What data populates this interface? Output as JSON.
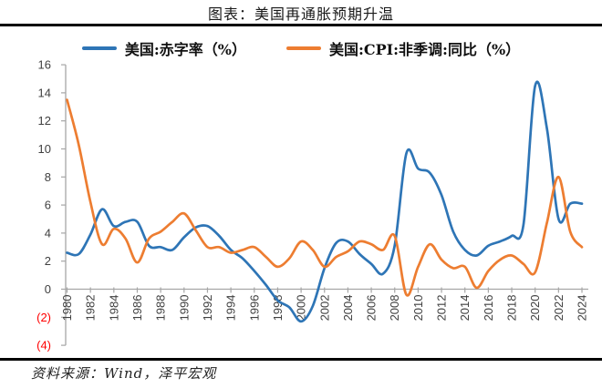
{
  "page": {
    "title": "图表：美国再通胀预期升温",
    "source": "资料来源：Wind，泽平宏观"
  },
  "legend": {
    "items": [
      {
        "label": "美国:赤字率（%）",
        "color": "#2E75B6"
      },
      {
        "label": "美国:CPI:非季调:同比（%）",
        "color": "#ED7D31"
      }
    ]
  },
  "chart_data": {
    "type": "line",
    "title": "图表：美国再通胀预期升温",
    "x": [
      1980,
      1981,
      1982,
      1983,
      1984,
      1985,
      1986,
      1987,
      1988,
      1989,
      1990,
      1991,
      1992,
      1993,
      1994,
      1995,
      1996,
      1997,
      1998,
      1999,
      2000,
      2001,
      2002,
      2003,
      2004,
      2005,
      2006,
      2007,
      2008,
      2009,
      2010,
      2011,
      2012,
      2013,
      2014,
      2015,
      2016,
      2017,
      2018,
      2019,
      2020,
      2021,
      2022,
      2023,
      2024
    ],
    "x_tick_labels": [
      "1980",
      "1982",
      "1984",
      "1986",
      "1988",
      "1990",
      "1992",
      "1994",
      "1996",
      "1998",
      "2000",
      "2002",
      "2004",
      "2006",
      "2008",
      "2010",
      "2012",
      "2014",
      "2016",
      "2018",
      "2020",
      "2022",
      "2024"
    ],
    "series": [
      {
        "name": "美国:赤字率（%）",
        "color": "#2E75B6",
        "values": [
          2.6,
          2.5,
          3.9,
          5.7,
          4.5,
          4.8,
          4.8,
          3.1,
          3.0,
          2.8,
          3.7,
          4.4,
          4.5,
          3.8,
          2.8,
          2.2,
          1.3,
          0.3,
          -0.8,
          -1.3,
          -2.3,
          -1.2,
          1.5,
          3.3,
          3.4,
          2.5,
          1.8,
          1.1,
          3.1,
          9.7,
          8.6,
          8.3,
          6.7,
          4.1,
          2.8,
          2.4,
          3.1,
          3.4,
          3.8,
          4.6,
          14.5,
          11.5,
          5.0,
          6.1,
          6.1
        ]
      },
      {
        "name": "美国:CPI:非季调:同比（%）",
        "color": "#ED7D31",
        "values": [
          13.5,
          10.3,
          6.2,
          3.2,
          4.3,
          3.6,
          1.9,
          3.6,
          4.1,
          4.8,
          5.4,
          4.2,
          3.0,
          3.0,
          2.6,
          2.8,
          3.0,
          2.3,
          1.6,
          2.2,
          3.4,
          2.8,
          1.6,
          2.3,
          2.7,
          3.4,
          3.2,
          2.8,
          3.8,
          -0.4,
          1.6,
          3.2,
          2.1,
          1.5,
          1.6,
          0.1,
          1.3,
          2.1,
          2.4,
          1.8,
          1.2,
          4.7,
          8.0,
          4.1,
          3.0
        ]
      }
    ],
    "ylim": [
      -4,
      16
    ],
    "y_ticks": [
      -4,
      -2,
      0,
      2,
      4,
      6,
      8,
      10,
      12,
      14,
      16
    ],
    "y_tick_step": 2,
    "negative_tick_format": "parentheses",
    "colors": {
      "axis": "#A6A6A6",
      "tick_label": "#404040",
      "negative_tick_label": "#FF0000"
    },
    "grid": false,
    "legend_position": "top"
  }
}
